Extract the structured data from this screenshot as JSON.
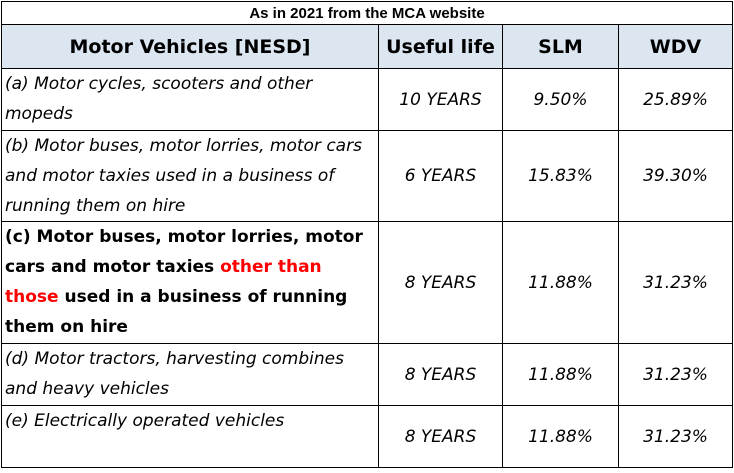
{
  "caption": "As in 2021 from the MCA website",
  "headers": {
    "category": "Motor Vehicles [NESD]",
    "useful_life": "Useful life",
    "slm": "SLM",
    "wdv": "WDV"
  },
  "rows": [
    {
      "desc": "(a) Motor cycles, scooters and other mopeds",
      "life": "10 YEARS",
      "slm": "9.50%",
      "wdv": "25.89%"
    },
    {
      "desc": "(b) Motor buses, motor lorries, motor cars and motor taxies used in a business of running them on hire",
      "life": "6 YEARS",
      "slm": "15.83%",
      "wdv": "39.30%"
    },
    {
      "desc_part1": "(c) Motor buses, motor lorries, motor cars and motor taxies ",
      "desc_highlight": "other than those",
      "desc_part2": " used in a business of running them on hire",
      "life": "8 YEARS",
      "slm": "11.88%",
      "wdv": "31.23%",
      "highlight_color": "#ff0000"
    },
    {
      "desc": "(d) Motor tractors, harvesting combines and heavy vehicles",
      "life": "8 YEARS",
      "slm": "11.88%",
      "wdv": "31.23%"
    },
    {
      "desc": "(e) Electrically operated vehicles",
      "life": "8 YEARS",
      "slm": "11.88%",
      "wdv": "31.23%"
    }
  ],
  "header_bg": "#dce6f1"
}
